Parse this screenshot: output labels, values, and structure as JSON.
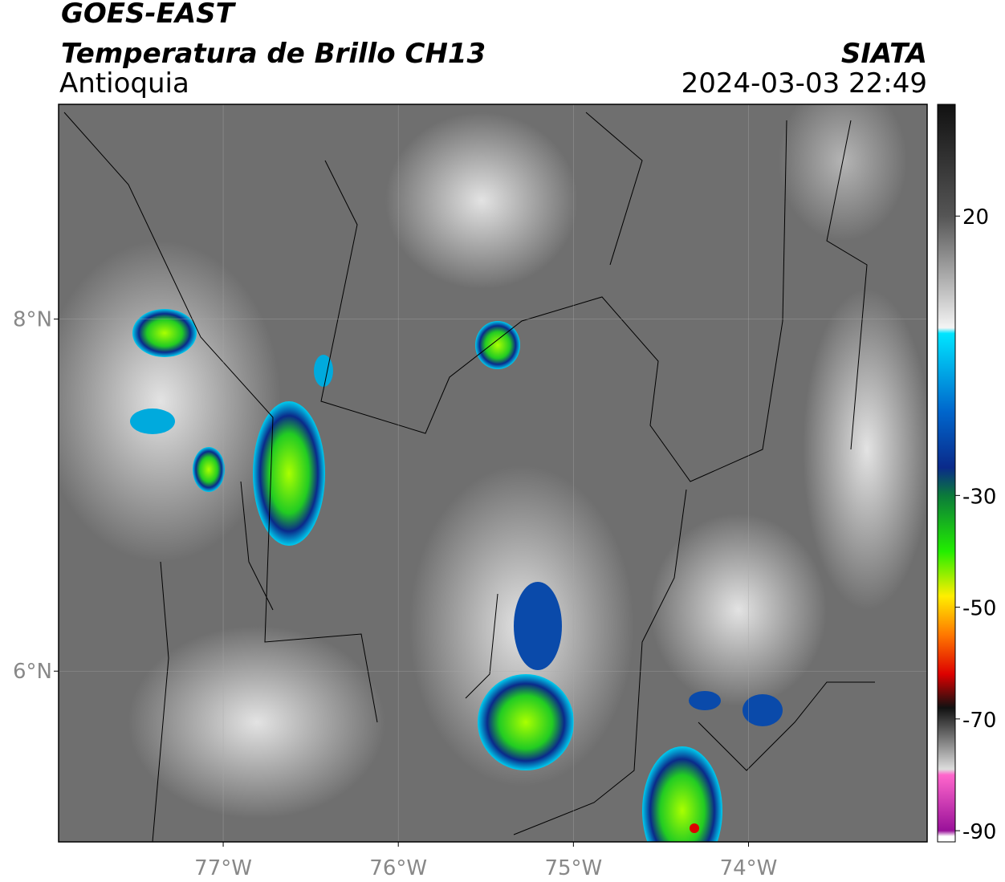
{
  "header": {
    "title": "GOES-EAST",
    "subtitle": "Temperatura de Brillo CH13",
    "region": "Antioquia",
    "source": "SIATA",
    "timestamp": "2024-03-03 22:49"
  },
  "map": {
    "lon_range": [
      -77.94,
      -72.98
    ],
    "lat_range": [
      5.03,
      9.22
    ],
    "lon_ticks": [
      {
        "value": -77,
        "label": "77°W"
      },
      {
        "value": -76,
        "label": "76°W"
      },
      {
        "value": -75,
        "label": "75°W"
      },
      {
        "value": -74,
        "label": "74°W"
      }
    ],
    "lat_ticks": [
      {
        "value": 8,
        "label": "8°N"
      },
      {
        "value": 6,
        "label": "6°N"
      }
    ],
    "grid": true
  },
  "colorbar": {
    "range": [
      -92,
      40
    ],
    "ticks": [
      20,
      -30,
      -50,
      -70,
      -90
    ],
    "colormap": [
      {
        "value": 40,
        "color": "#111111"
      },
      {
        "value": 20,
        "color": "#555555"
      },
      {
        "value": 0,
        "color": "#f4f4f4"
      },
      {
        "value": -1,
        "color": "#00e5ff"
      },
      {
        "value": -15,
        "color": "#0066cc"
      },
      {
        "value": -25,
        "color": "#0a2a8a"
      },
      {
        "value": -30,
        "color": "#0b7a3a"
      },
      {
        "value": -40,
        "color": "#22ee00"
      },
      {
        "value": -48,
        "color": "#ffee00"
      },
      {
        "value": -55,
        "color": "#ff7700"
      },
      {
        "value": -62,
        "color": "#dd0000"
      },
      {
        "value": -68,
        "color": "#111111"
      },
      {
        "value": -79,
        "color": "#dddddd"
      },
      {
        "value": -80,
        "color": "#ff66cc"
      },
      {
        "value": -90,
        "color": "#991199"
      },
      {
        "value": -91,
        "color": "#ffffff"
      }
    ]
  }
}
